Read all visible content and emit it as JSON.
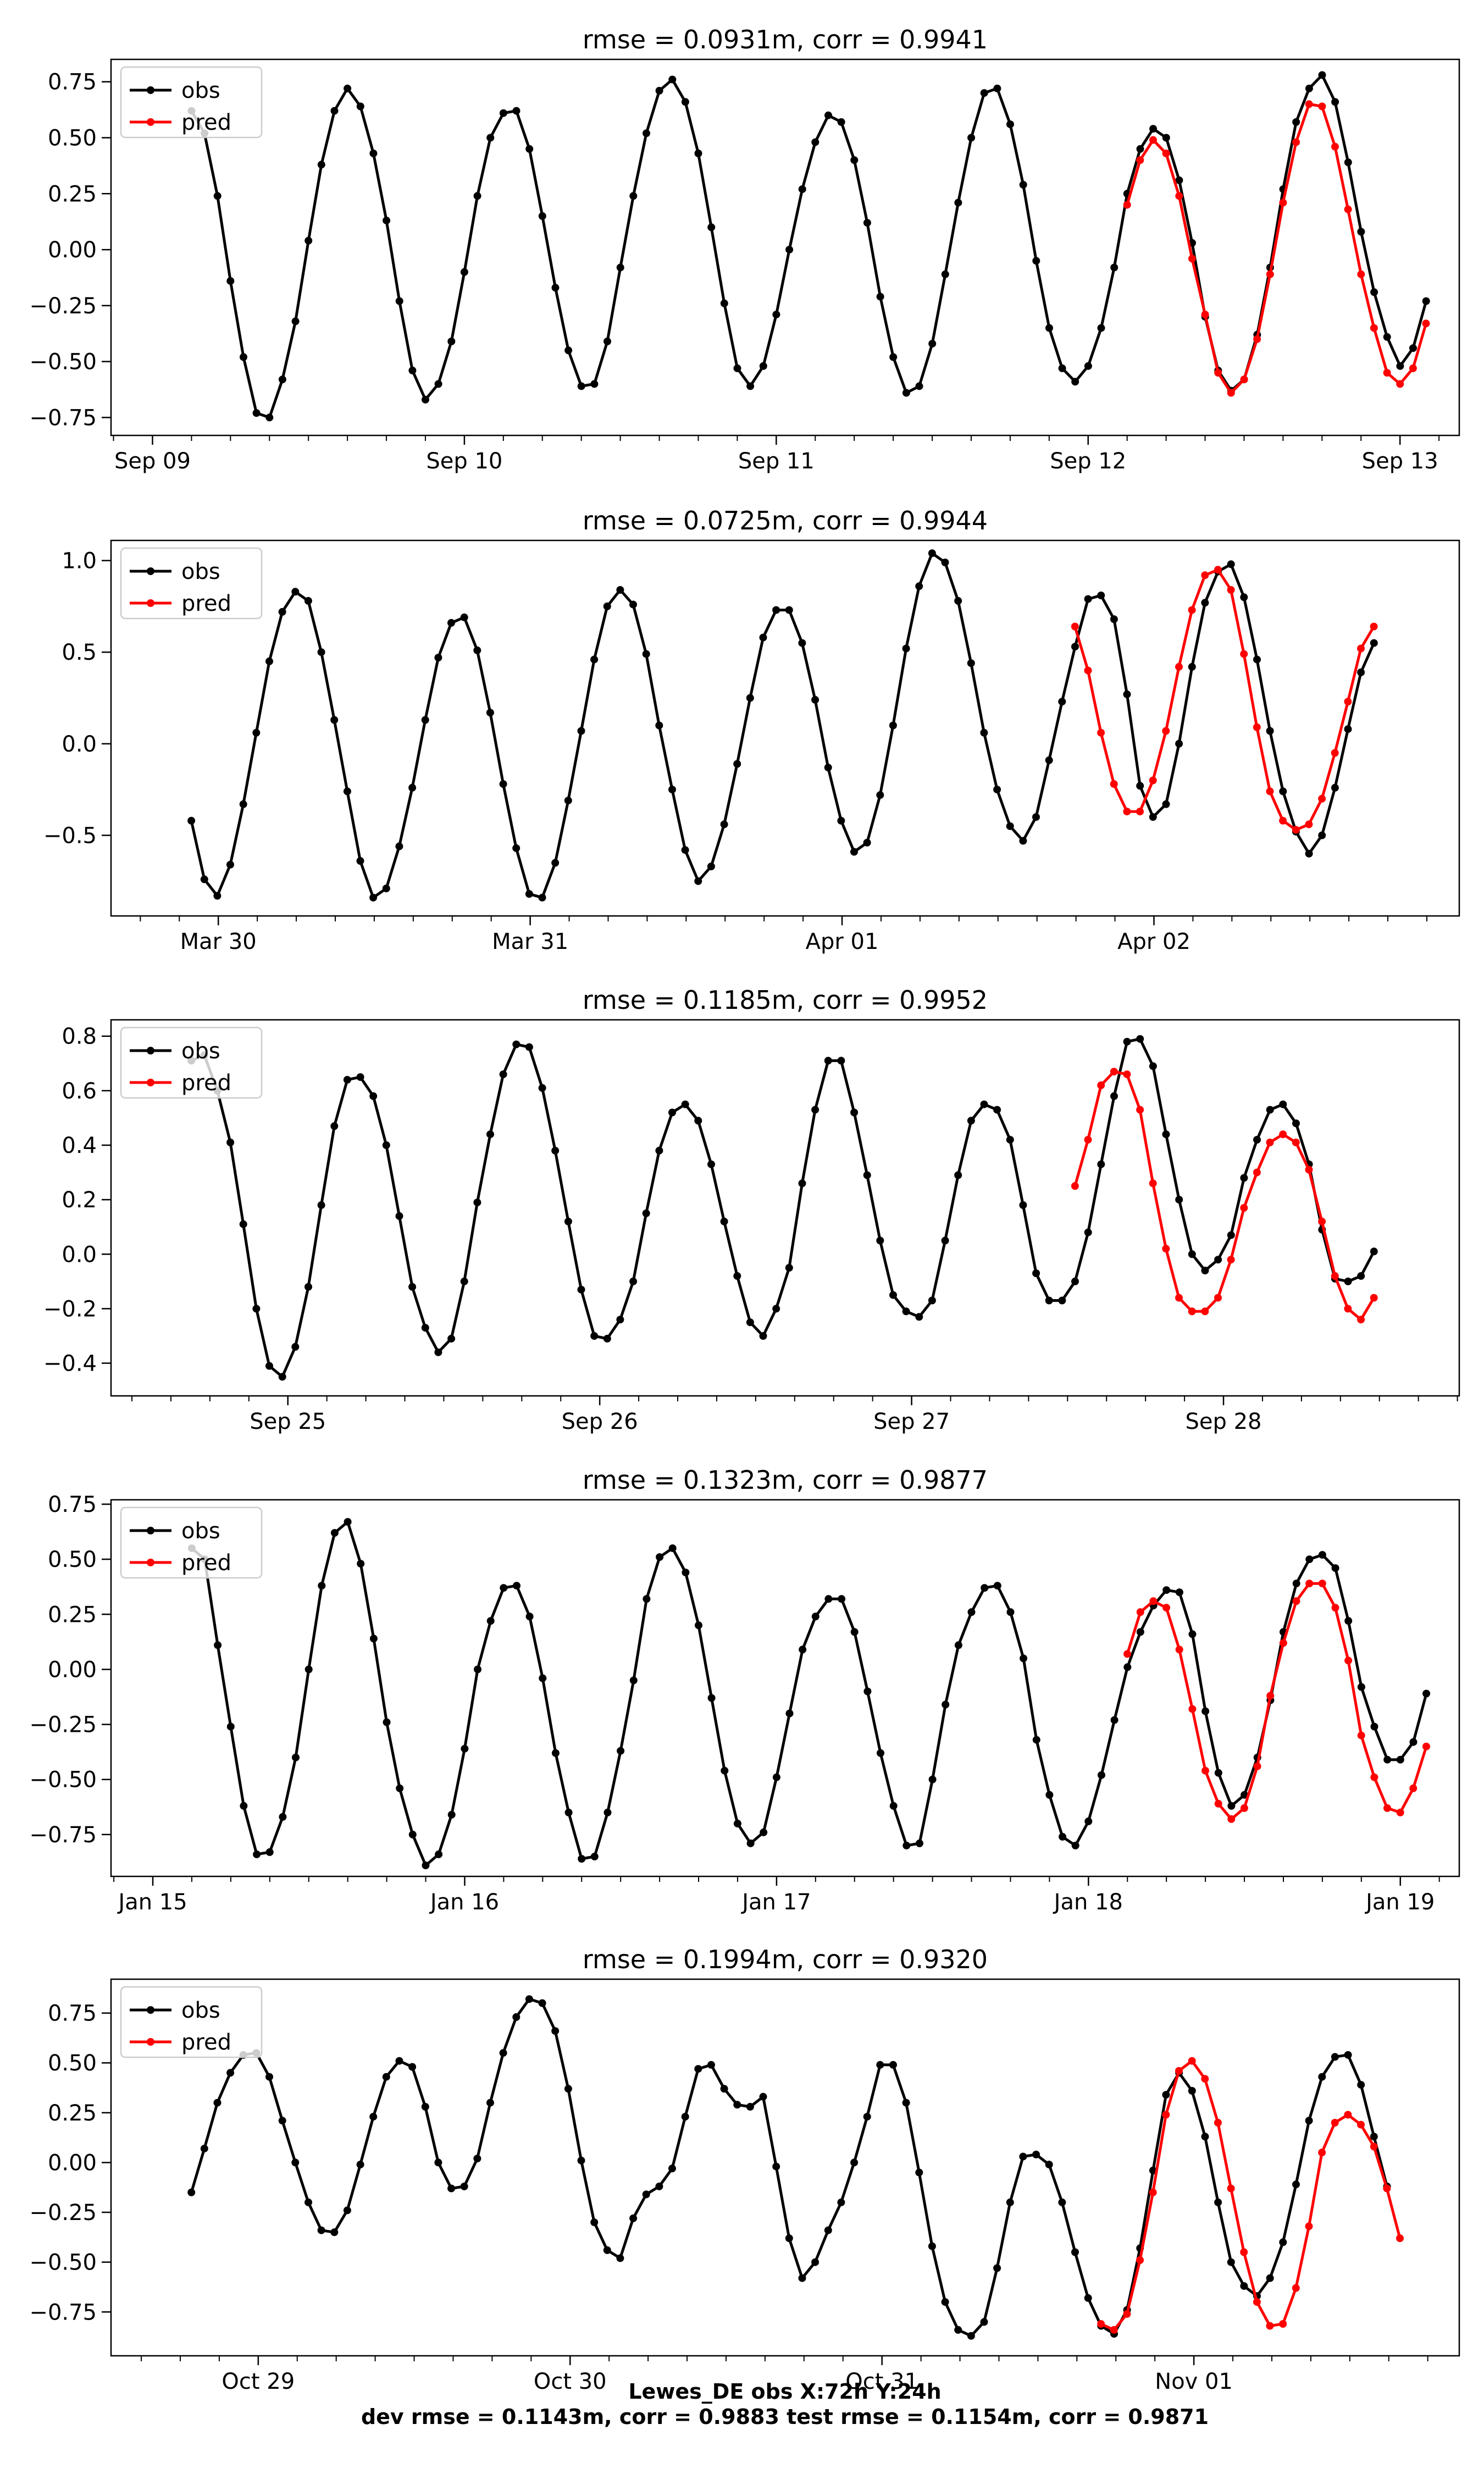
{
  "figure": {
    "footer_lines": [
      "Lewes_DE   obs   X:72h   Y:24h",
      "dev rmse = 0.1143m, corr = 0.9883   test rmse = 0.1154m, corr = 0.9871"
    ]
  },
  "colors": {
    "obs": "#000000",
    "pred": "#ff0000",
    "frame": "#000000",
    "legend_border": "#cccccc"
  },
  "chart_data": [
    {
      "type": "line",
      "title": "rmse = 0.0931m, corr = 0.9941",
      "xlabel": "",
      "ylabel": "",
      "legend": {
        "placement": "top-left",
        "entries": [
          "obs",
          "pred"
        ]
      },
      "grid": false,
      "xlim": [
        -0.133,
        4.19
      ],
      "ylim": [
        -0.83,
        0.85
      ],
      "x_ticks": [
        {
          "x": 0,
          "label": "Sep 09"
        },
        {
          "x": 1,
          "label": "Sep 10"
        },
        {
          "x": 2,
          "label": "Sep 11"
        },
        {
          "x": 3,
          "label": "Sep 12"
        },
        {
          "x": 4,
          "label": "Sep 13"
        }
      ],
      "y_ticks": [
        {
          "y": -0.75,
          "label": "−0.75"
        },
        {
          "y": -0.5,
          "label": "−0.50"
        },
        {
          "y": -0.25,
          "label": "−0.25"
        },
        {
          "y": 0,
          "label": "0.00"
        },
        {
          "y": 0.25,
          "label": "0.25"
        },
        {
          "y": 0.5,
          "label": "0.50"
        },
        {
          "y": 0.75,
          "label": "0.75"
        }
      ],
      "x_start": 0.125,
      "x_step": 0.04167,
      "series": [
        {
          "name": "obs",
          "values": [
            0.62,
            0.52,
            0.24,
            -0.14,
            -0.48,
            -0.73,
            -0.75,
            -0.58,
            -0.32,
            0.04,
            0.38,
            0.62,
            0.72,
            0.64,
            0.43,
            0.13,
            -0.23,
            -0.54,
            -0.67,
            -0.6,
            -0.41,
            -0.1,
            0.24,
            0.5,
            0.61,
            0.62,
            0.45,
            0.15,
            -0.17,
            -0.45,
            -0.61,
            -0.6,
            -0.41,
            -0.08,
            0.24,
            0.52,
            0.71,
            0.76,
            0.66,
            0.43,
            0.1,
            -0.24,
            -0.53,
            -0.61,
            -0.52,
            -0.29,
            0.0,
            0.27,
            0.48,
            0.6,
            0.57,
            0.4,
            0.12,
            -0.21,
            -0.48,
            -0.64,
            -0.61,
            -0.42,
            -0.11,
            0.21,
            0.5,
            0.7,
            0.72,
            0.56,
            0.29,
            -0.05,
            -0.35,
            -0.53,
            -0.59,
            -0.52,
            -0.35,
            -0.08,
            0.25,
            0.45,
            0.54,
            0.5,
            0.31,
            0.03,
            -0.3,
            -0.54,
            -0.63,
            -0.58,
            -0.38,
            -0.08,
            0.27,
            0.57,
            0.72,
            0.78,
            0.66,
            0.39,
            0.08,
            -0.19,
            -0.39,
            -0.52,
            -0.44,
            -0.23
          ]
        },
        {
          "name": "pred",
          "x_start": 3.125,
          "values": [
            0.2,
            0.4,
            0.49,
            0.43,
            0.24,
            -0.04,
            -0.29,
            -0.55,
            -0.64,
            -0.58,
            -0.4,
            -0.11,
            0.21,
            0.48,
            0.65,
            0.64,
            0.46,
            0.18,
            -0.11,
            -0.35,
            -0.55,
            -0.6,
            -0.53,
            -0.33
          ]
        }
      ]
    },
    {
      "type": "line",
      "title": "rmse = 0.0725m, corr = 0.9944",
      "xlabel": "",
      "ylabel": "",
      "legend": {
        "placement": "top-left",
        "entries": [
          "obs",
          "pred"
        ]
      },
      "grid": false,
      "xlim": [
        -0.344,
        3.979
      ],
      "ylim": [
        -0.94,
        1.11
      ],
      "x_ticks": [
        {
          "x": 0,
          "label": "Mar 30"
        },
        {
          "x": 1,
          "label": "Mar 31"
        },
        {
          "x": 2,
          "label": "Apr 01"
        },
        {
          "x": 3,
          "label": "Apr 02"
        }
      ],
      "y_ticks": [
        {
          "y": -0.5,
          "label": "−0.5"
        },
        {
          "y": 0,
          "label": "0.0"
        },
        {
          "y": 0.5,
          "label": "0.5"
        },
        {
          "y": 1.0,
          "label": "1.0"
        }
      ],
      "x_start": -0.0865,
      "x_step": 0.04167,
      "series": [
        {
          "name": "obs",
          "values": [
            -0.42,
            -0.74,
            -0.83,
            -0.66,
            -0.33,
            0.06,
            0.45,
            0.72,
            0.83,
            0.78,
            0.5,
            0.13,
            -0.26,
            -0.64,
            -0.84,
            -0.79,
            -0.56,
            -0.24,
            0.13,
            0.47,
            0.66,
            0.69,
            0.51,
            0.17,
            -0.22,
            -0.57,
            -0.82,
            -0.84,
            -0.65,
            -0.31,
            0.07,
            0.46,
            0.75,
            0.84,
            0.76,
            0.49,
            0.1,
            -0.25,
            -0.58,
            -0.75,
            -0.67,
            -0.44,
            -0.11,
            0.25,
            0.58,
            0.73,
            0.73,
            0.55,
            0.24,
            -0.13,
            -0.42,
            -0.59,
            -0.54,
            -0.28,
            0.1,
            0.52,
            0.86,
            1.04,
            0.99,
            0.78,
            0.44,
            0.06,
            -0.25,
            -0.45,
            -0.53,
            -0.4,
            -0.09,
            0.23,
            0.53,
            0.79,
            0.81,
            0.68,
            0.27,
            -0.23,
            -0.4,
            -0.33,
            0.0,
            0.42,
            0.77,
            0.94,
            0.98,
            0.8,
            0.46,
            0.07,
            -0.26,
            -0.48,
            -0.6,
            -0.5,
            -0.24,
            0.08,
            0.39,
            0.55
          ]
        },
        {
          "name": "pred",
          "x_start": 2.7468,
          "values": [
            0.64,
            0.4,
            0.06,
            -0.22,
            -0.37,
            -0.37,
            -0.2,
            0.07,
            0.42,
            0.73,
            0.92,
            0.95,
            0.84,
            0.49,
            0.09,
            -0.26,
            -0.42,
            -0.47,
            -0.44,
            -0.3,
            -0.05,
            0.23,
            0.52,
            0.64
          ]
        }
      ]
    },
    {
      "type": "line",
      "title": "rmse = 0.1185m, corr = 0.9952",
      "xlabel": "",
      "ylabel": "",
      "legend": {
        "placement": "top-left",
        "entries": [
          "obs",
          "pred"
        ]
      },
      "grid": false,
      "xlim": [
        -0.567,
        3.756
      ],
      "ylim": [
        -0.52,
        0.86
      ],
      "x_ticks": [
        {
          "x": 0,
          "label": "Sep 25"
        },
        {
          "x": 1,
          "label": "Sep 26"
        },
        {
          "x": 2,
          "label": "Sep 27"
        },
        {
          "x": 3,
          "label": "Sep 28"
        }
      ],
      "y_ticks": [
        {
          "y": -0.4,
          "label": "−0.4"
        },
        {
          "y": -0.2,
          "label": "−0.2"
        },
        {
          "y": 0,
          "label": "0.0"
        },
        {
          "y": 0.2,
          "label": "0.2"
        },
        {
          "y": 0.4,
          "label": "0.4"
        },
        {
          "y": 0.6,
          "label": "0.6"
        },
        {
          "y": 0.8,
          "label": "0.8"
        }
      ],
      "x_start": -0.3094,
      "x_step": 0.04167,
      "series": [
        {
          "name": "obs",
          "values": [
            0.71,
            0.73,
            0.6,
            0.41,
            0.11,
            -0.2,
            -0.41,
            -0.45,
            -0.34,
            -0.12,
            0.18,
            0.47,
            0.64,
            0.65,
            0.58,
            0.4,
            0.14,
            -0.12,
            -0.27,
            -0.36,
            -0.31,
            -0.1,
            0.19,
            0.44,
            0.66,
            0.77,
            0.76,
            0.61,
            0.38,
            0.12,
            -0.13,
            -0.3,
            -0.31,
            -0.24,
            -0.1,
            0.15,
            0.38,
            0.52,
            0.55,
            0.49,
            0.33,
            0.12,
            -0.08,
            -0.25,
            -0.3,
            -0.2,
            -0.05,
            0.26,
            0.53,
            0.71,
            0.71,
            0.52,
            0.29,
            0.05,
            -0.15,
            -0.21,
            -0.23,
            -0.17,
            0.05,
            0.29,
            0.49,
            0.55,
            0.53,
            0.42,
            0.18,
            -0.07,
            -0.17,
            -0.17,
            -0.1,
            0.08,
            0.33,
            0.58,
            0.78,
            0.79,
            0.69,
            0.44,
            0.2,
            0.0,
            -0.06,
            -0.02,
            0.07,
            0.28,
            0.42,
            0.53,
            0.55,
            0.48,
            0.33,
            0.09,
            -0.09,
            -0.1,
            -0.08,
            0.01
          ]
        },
        {
          "name": "pred",
          "x_start": 2.5239,
          "values": [
            0.25,
            0.42,
            0.62,
            0.67,
            0.66,
            0.53,
            0.26,
            0.02,
            -0.16,
            -0.21,
            -0.21,
            -0.16,
            -0.02,
            0.17,
            0.3,
            0.41,
            0.44,
            0.41,
            0.31,
            0.12,
            -0.08,
            -0.2,
            -0.24,
            -0.16
          ]
        }
      ]
    },
    {
      "type": "line",
      "title": "rmse = 0.1323m, corr = 0.9877",
      "xlabel": "",
      "ylabel": "",
      "legend": {
        "placement": "top-left",
        "entries": [
          "obs",
          "pred"
        ]
      },
      "grid": false,
      "xlim": [
        -0.134,
        4.189
      ],
      "ylim": [
        -0.94,
        0.77
      ],
      "x_ticks": [
        {
          "x": 0,
          "label": "Jan 15"
        },
        {
          "x": 1,
          "label": "Jan 16"
        },
        {
          "x": 2,
          "label": "Jan 17"
        },
        {
          "x": 3,
          "label": "Jan 18"
        },
        {
          "x": 4,
          "label": "Jan 19"
        }
      ],
      "y_ticks": [
        {
          "y": -0.75,
          "label": "−0.75"
        },
        {
          "y": -0.5,
          "label": "−0.50"
        },
        {
          "y": -0.25,
          "label": "−0.25"
        },
        {
          "y": 0,
          "label": "0.00"
        },
        {
          "y": 0.25,
          "label": "0.25"
        },
        {
          "y": 0.5,
          "label": "0.50"
        },
        {
          "y": 0.75,
          "label": "0.75"
        }
      ],
      "x_start": 0.1248,
      "x_step": 0.04167,
      "series": [
        {
          "name": "obs",
          "values": [
            0.55,
            0.5,
            0.11,
            -0.26,
            -0.62,
            -0.84,
            -0.83,
            -0.67,
            -0.4,
            0.0,
            0.38,
            0.62,
            0.67,
            0.48,
            0.14,
            -0.24,
            -0.54,
            -0.75,
            -0.89,
            -0.84,
            -0.66,
            -0.36,
            0.0,
            0.22,
            0.37,
            0.38,
            0.24,
            -0.04,
            -0.38,
            -0.65,
            -0.86,
            -0.85,
            -0.65,
            -0.37,
            -0.05,
            0.32,
            0.51,
            0.55,
            0.44,
            0.2,
            -0.13,
            -0.46,
            -0.7,
            -0.79,
            -0.74,
            -0.49,
            -0.2,
            0.09,
            0.24,
            0.32,
            0.32,
            0.17,
            -0.1,
            -0.38,
            -0.62,
            -0.8,
            -0.79,
            -0.5,
            -0.16,
            0.11,
            0.26,
            0.37,
            0.38,
            0.26,
            0.05,
            -0.32,
            -0.57,
            -0.76,
            -0.8,
            -0.69,
            -0.48,
            -0.23,
            0.01,
            0.17,
            0.29,
            0.36,
            0.35,
            0.16,
            -0.19,
            -0.47,
            -0.62,
            -0.57,
            -0.4,
            -0.14,
            0.17,
            0.39,
            0.5,
            0.52,
            0.46,
            0.22,
            -0.08,
            -0.26,
            -0.41,
            -0.41,
            -0.33,
            -0.11
          ]
        },
        {
          "name": "pred",
          "x_start": 3.1248,
          "values": [
            0.07,
            0.26,
            0.31,
            0.28,
            0.09,
            -0.18,
            -0.46,
            -0.61,
            -0.68,
            -0.63,
            -0.44,
            -0.12,
            0.12,
            0.31,
            0.39,
            0.39,
            0.28,
            0.04,
            -0.3,
            -0.49,
            -0.63,
            -0.65,
            -0.54,
            -0.35
          ]
        }
      ]
    },
    {
      "type": "line",
      "title": "rmse = 0.1994m, corr = 0.9320",
      "xlabel": "",
      "ylabel": "",
      "legend": {
        "placement": "top-left",
        "entries": [
          "obs",
          "pred"
        ]
      },
      "grid": false,
      "xlim": [
        -0.472,
        3.851
      ],
      "ylim": [
        -0.97,
        0.92
      ],
      "x_ticks": [
        {
          "x": 0,
          "label": "Oct 29"
        },
        {
          "x": 1,
          "label": "Oct 30"
        },
        {
          "x": 2,
          "label": "Oct 31"
        },
        {
          "x": 3,
          "label": "Nov 01"
        }
      ],
      "y_ticks": [
        {
          "y": -0.75,
          "label": "−0.75"
        },
        {
          "y": -0.5,
          "label": "−0.50"
        },
        {
          "y": -0.25,
          "label": "−0.25"
        },
        {
          "y": 0,
          "label": "0.00"
        },
        {
          "y": 0.25,
          "label": "0.25"
        },
        {
          "y": 0.5,
          "label": "0.50"
        },
        {
          "y": 0.75,
          "label": "0.75"
        }
      ],
      "x_start": -0.2144,
      "x_step": 0.04167,
      "series": [
        {
          "name": "obs",
          "values": [
            -0.15,
            0.07,
            0.3,
            0.45,
            0.54,
            0.55,
            0.43,
            0.21,
            0.0,
            -0.2,
            -0.34,
            -0.35,
            -0.24,
            -0.01,
            0.23,
            0.43,
            0.51,
            0.48,
            0.28,
            0.0,
            -0.13,
            -0.12,
            0.02,
            0.3,
            0.55,
            0.73,
            0.82,
            0.8,
            0.66,
            0.37,
            0.01,
            -0.3,
            -0.44,
            -0.48,
            -0.28,
            -0.16,
            -0.12,
            -0.03,
            0.23,
            0.47,
            0.49,
            0.37,
            0.29,
            0.28,
            0.33,
            -0.02,
            -0.38,
            -0.58,
            -0.5,
            -0.34,
            -0.2,
            0.0,
            0.23,
            0.49,
            0.49,
            0.3,
            -0.05,
            -0.42,
            -0.7,
            -0.84,
            -0.87,
            -0.8,
            -0.53,
            -0.2,
            0.03,
            0.04,
            -0.01,
            -0.2,
            -0.45,
            -0.68,
            -0.82,
            -0.86,
            -0.74,
            -0.43,
            -0.04,
            0.34,
            0.45,
            0.36,
            0.13,
            -0.2,
            -0.5,
            -0.62,
            -0.67,
            -0.58,
            -0.4,
            -0.11,
            0.21,
            0.43,
            0.53,
            0.54,
            0.39,
            0.13,
            -0.12
          ]
        },
        {
          "name": "pred",
          "x_start": 2.7022,
          "values": [
            -0.81,
            -0.84,
            -0.76,
            -0.49,
            -0.15,
            0.24,
            0.46,
            0.51,
            0.42,
            0.2,
            -0.13,
            -0.45,
            -0.7,
            -0.82,
            -0.81,
            -0.63,
            -0.32,
            0.05,
            0.2,
            0.24,
            0.19,
            0.08,
            -0.13,
            -0.38
          ]
        }
      ]
    }
  ]
}
